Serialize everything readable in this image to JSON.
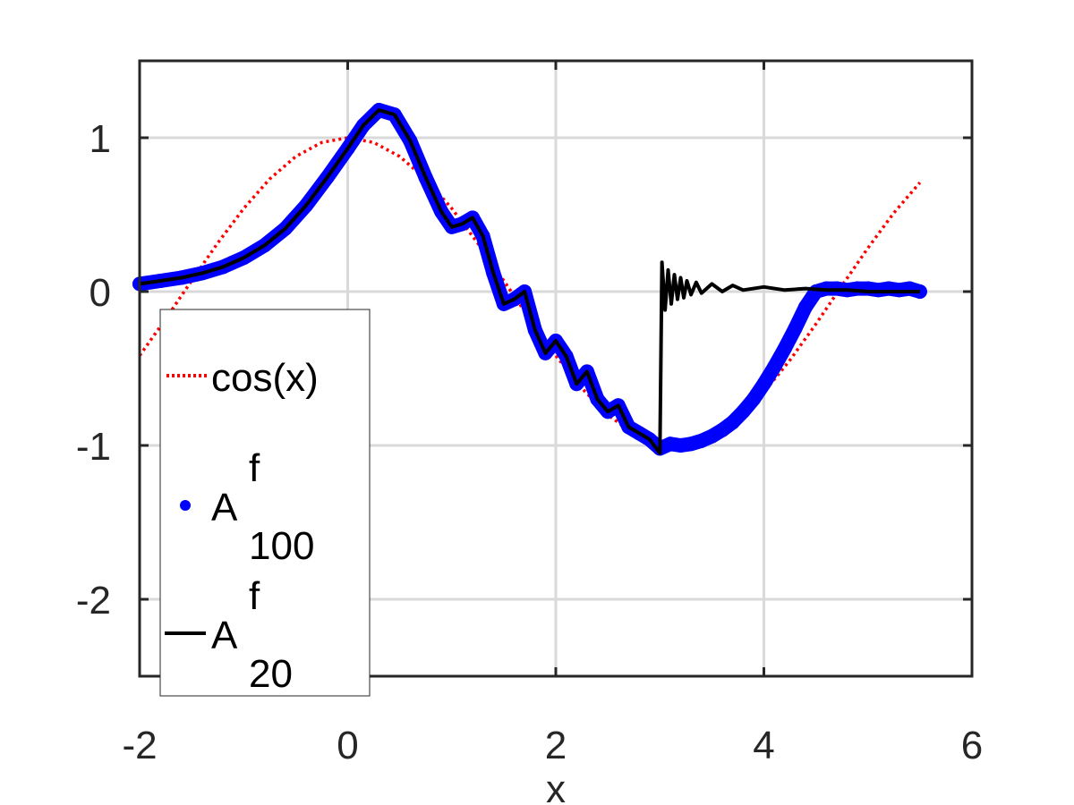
{
  "chart_data": {
    "type": "line",
    "title": "",
    "xlabel": "x",
    "ylabel": "",
    "xlim": [
      -2,
      6
    ],
    "ylim": [
      -2.5,
      1.5
    ],
    "xticks": [
      -2,
      0,
      2,
      4,
      6
    ],
    "xtick_labels": [
      "-2",
      "0",
      "2",
      "4",
      "6"
    ],
    "yticks": [
      -2,
      -1,
      0,
      1
    ],
    "ytick_labels": [
      "-2",
      "-1",
      "0",
      "1"
    ],
    "grid": true,
    "legend_position": "bottom-left",
    "legend": [
      {
        "id": "cos",
        "text": "cos(x)",
        "sup": "",
        "sub": ""
      },
      {
        "id": "a100",
        "text": "A",
        "sup": "f",
        "sub": "100"
      },
      {
        "id": "a20",
        "text": "A",
        "sup": "f",
        "sub": "20"
      }
    ],
    "series": [
      {
        "id": "cos",
        "style": "dotted-line",
        "color": "#ff0000",
        "x": [
          -2.0,
          -1.75,
          -1.5,
          -1.25,
          -1.0,
          -0.75,
          -0.5,
          -0.25,
          0.0,
          0.25,
          0.5,
          0.75,
          1.0,
          1.25,
          1.5,
          1.75,
          2.0,
          2.25,
          2.5,
          2.75,
          3.0,
          3.25,
          3.5,
          3.75,
          4.0,
          4.25,
          4.5,
          4.75,
          5.0,
          5.25,
          5.5
        ],
        "y": [
          -0.416,
          -0.178,
          0.071,
          0.315,
          0.54,
          0.732,
          0.878,
          0.969,
          1.0,
          0.969,
          0.878,
          0.732,
          0.54,
          0.315,
          0.071,
          -0.178,
          -0.416,
          -0.628,
          -0.801,
          -0.924,
          -0.99,
          -0.994,
          -0.936,
          -0.821,
          -0.654,
          -0.446,
          -0.211,
          0.038,
          0.284,
          0.512,
          0.709
        ]
      },
      {
        "id": "a100",
        "style": "markers",
        "color": "#0000ff",
        "x": [
          -2.0,
          -1.8,
          -1.6,
          -1.4,
          -1.2,
          -1.0,
          -0.8,
          -0.6,
          -0.4,
          -0.2,
          0.0,
          0.15,
          0.3,
          0.45,
          0.6,
          0.75,
          0.9,
          1.0,
          1.1,
          1.2,
          1.3,
          1.4,
          1.5,
          1.6,
          1.7,
          1.8,
          1.9,
          2.0,
          2.1,
          2.2,
          2.3,
          2.4,
          2.5,
          2.6,
          2.7,
          2.8,
          2.9,
          3.0,
          3.1,
          3.2,
          3.3,
          3.4,
          3.5,
          3.6,
          3.7,
          3.8,
          3.9,
          4.0,
          4.1,
          4.2,
          4.3,
          4.4,
          4.5,
          4.6,
          4.7,
          4.8,
          4.9,
          5.0,
          5.1,
          5.2,
          5.3,
          5.4,
          5.5
        ],
        "y": [
          0.05,
          0.07,
          0.09,
          0.12,
          0.16,
          0.22,
          0.3,
          0.41,
          0.56,
          0.74,
          0.93,
          1.08,
          1.18,
          1.15,
          0.98,
          0.74,
          0.52,
          0.42,
          0.44,
          0.48,
          0.36,
          0.12,
          -0.08,
          -0.05,
          0.0,
          -0.25,
          -0.4,
          -0.32,
          -0.42,
          -0.6,
          -0.52,
          -0.7,
          -0.78,
          -0.74,
          -0.88,
          -0.92,
          -0.96,
          -1.02,
          -0.99,
          -1.0,
          -0.99,
          -0.97,
          -0.94,
          -0.9,
          -0.85,
          -0.78,
          -0.7,
          -0.6,
          -0.49,
          -0.37,
          -0.24,
          -0.1,
          0.0,
          0.02,
          0.02,
          0.01,
          0.02,
          0.02,
          0.01,
          0.02,
          0.01,
          0.02,
          0.0
        ]
      },
      {
        "id": "a20",
        "style": "solid-line",
        "color": "#000000",
        "x": [
          -2.0,
          -1.8,
          -1.6,
          -1.4,
          -1.2,
          -1.0,
          -0.8,
          -0.6,
          -0.4,
          -0.2,
          0.0,
          0.15,
          0.3,
          0.45,
          0.6,
          0.75,
          0.9,
          1.0,
          1.1,
          1.2,
          1.3,
          1.4,
          1.5,
          1.6,
          1.7,
          1.8,
          1.9,
          2.0,
          2.1,
          2.2,
          2.3,
          2.4,
          2.5,
          2.6,
          2.7,
          2.8,
          2.9,
          3.0,
          3.02,
          3.05,
          3.08,
          3.11,
          3.14,
          3.17,
          3.2,
          3.23,
          3.26,
          3.3,
          3.35,
          3.4,
          3.5,
          3.6,
          3.7,
          3.8,
          4.0,
          4.2,
          4.4,
          4.6,
          4.8,
          5.0,
          5.2,
          5.5
        ],
        "y": [
          0.05,
          0.07,
          0.09,
          0.12,
          0.16,
          0.22,
          0.3,
          0.41,
          0.56,
          0.74,
          0.93,
          1.08,
          1.18,
          1.15,
          0.98,
          0.74,
          0.52,
          0.42,
          0.44,
          0.48,
          0.36,
          0.12,
          -0.08,
          -0.05,
          0.0,
          -0.25,
          -0.4,
          -0.32,
          -0.42,
          -0.6,
          -0.52,
          -0.7,
          -0.78,
          -0.74,
          -0.88,
          -0.92,
          -0.96,
          -1.05,
          0.19,
          -0.12,
          0.14,
          -0.08,
          0.11,
          -0.05,
          0.09,
          -0.04,
          0.07,
          -0.02,
          0.06,
          -0.01,
          0.05,
          0.0,
          0.04,
          0.01,
          0.03,
          0.01,
          0.02,
          0.01,
          0.01,
          0.0,
          0.0,
          0.0
        ]
      }
    ]
  }
}
